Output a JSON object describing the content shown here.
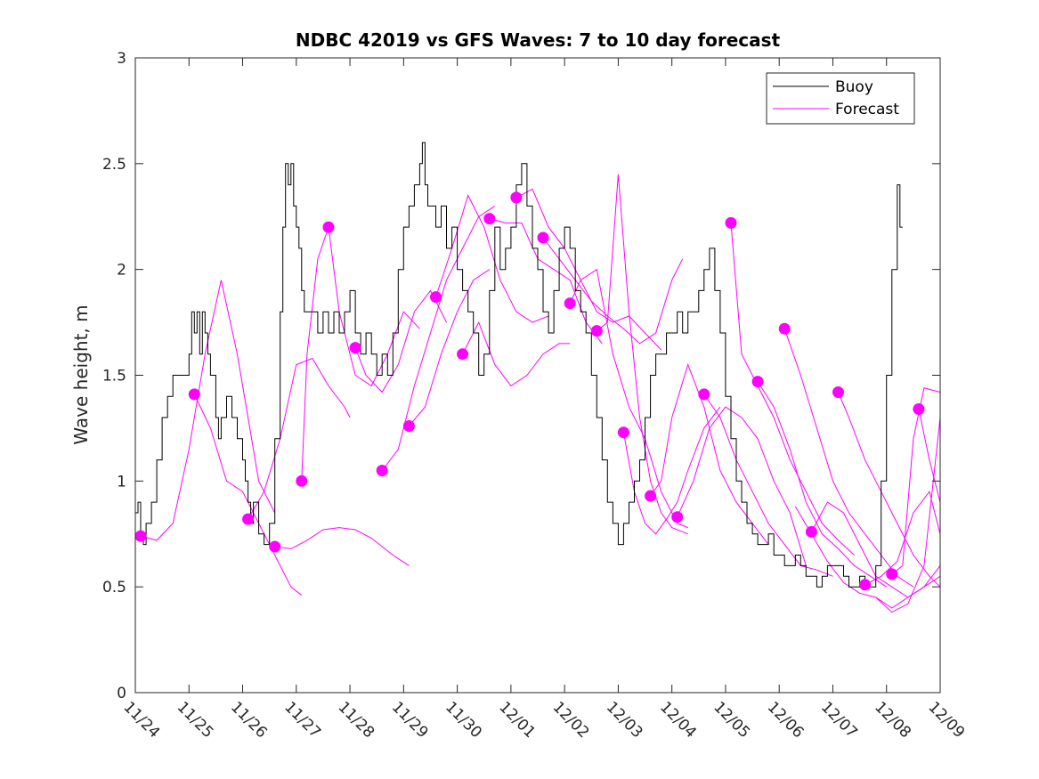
{
  "chart_data": {
    "type": "line",
    "title": "NDBC 42019 vs GFS Waves: 7 to 10 day forecast",
    "xlabel": "",
    "ylabel": "Wave height, m",
    "ylim": [
      0,
      3
    ],
    "yticks": [
      0,
      0.5,
      1,
      1.5,
      2,
      2.5,
      3
    ],
    "ytick_labels": [
      "0",
      "0.5",
      "1",
      "1.5",
      "2",
      "2.5",
      "3"
    ],
    "xlim_days": [
      0,
      15
    ],
    "xtick_labels": [
      "11/24",
      "11/25",
      "11/26",
      "11/27",
      "11/28",
      "11/29",
      "11/30",
      "12/01",
      "12/02",
      "12/03",
      "12/04",
      "12/05",
      "12/06",
      "12/07",
      "12/08",
      "12/09"
    ],
    "grid": false,
    "legend": {
      "placement": "top-right",
      "entries": [
        {
          "label": "Buoy",
          "color": "#000000"
        },
        {
          "label": "Forecast",
          "color": "#ff00ff"
        }
      ]
    },
    "colors": {
      "buoy": "#000000",
      "forecast": "#ff00ff",
      "axis": "#262626"
    },
    "series": [
      {
        "name": "Buoy",
        "x_days": [
          0,
          0.05,
          0.1,
          0.15,
          0.2,
          0.3,
          0.4,
          0.5,
          0.6,
          0.7,
          0.8,
          0.9,
          1.0,
          1.05,
          1.1,
          1.15,
          1.2,
          1.25,
          1.3,
          1.35,
          1.4,
          1.5,
          1.55,
          1.6,
          1.7,
          1.8,
          1.9,
          2.0,
          2.05,
          2.1,
          2.15,
          2.2,
          2.3,
          2.4,
          2.5,
          2.6,
          2.7,
          2.75,
          2.8,
          2.85,
          2.9,
          2.95,
          3.0,
          3.05,
          3.1,
          3.15,
          3.2,
          3.3,
          3.4,
          3.5,
          3.6,
          3.7,
          3.8,
          3.9,
          4.0,
          4.1,
          4.2,
          4.3,
          4.4,
          4.5,
          4.6,
          4.7,
          4.8,
          4.9,
          5.0,
          5.1,
          5.2,
          5.3,
          5.35,
          5.4,
          5.45,
          5.5,
          5.6,
          5.7,
          5.8,
          5.9,
          6.0,
          6.1,
          6.2,
          6.3,
          6.4,
          6.5,
          6.6,
          6.7,
          6.8,
          6.9,
          7.0,
          7.1,
          7.2,
          7.3,
          7.4,
          7.5,
          7.6,
          7.7,
          7.8,
          7.9,
          8.0,
          8.1,
          8.2,
          8.3,
          8.4,
          8.5,
          8.6,
          8.7,
          8.8,
          8.9,
          9.0,
          9.1,
          9.2,
          9.3,
          9.4,
          9.5,
          9.6,
          9.7,
          9.8,
          9.9,
          10.0,
          10.1,
          10.2,
          10.3,
          10.4,
          10.5,
          10.6,
          10.7,
          10.8,
          10.9,
          11.0,
          11.1,
          11.2,
          11.3,
          11.4,
          11.5,
          11.6,
          11.7,
          11.8,
          11.9,
          12.0,
          12.1,
          12.2,
          12.3,
          12.4,
          12.5,
          12.6,
          12.7,
          12.8,
          12.9,
          13.0,
          13.1,
          13.2,
          13.3,
          13.4,
          13.5,
          13.6,
          13.7,
          13.8,
          13.9,
          14.0,
          14.1,
          14.2,
          14.25,
          14.3,
          14.32
        ],
        "values": [
          0.85,
          0.9,
          0.75,
          0.7,
          0.8,
          0.9,
          1.1,
          1.3,
          1.4,
          1.5,
          1.5,
          1.5,
          1.6,
          1.8,
          1.7,
          1.8,
          1.6,
          1.8,
          1.7,
          1.6,
          1.5,
          1.3,
          1.2,
          1.3,
          1.4,
          1.3,
          1.2,
          1.1,
          1.0,
          0.9,
          0.8,
          0.9,
          0.75,
          0.7,
          0.8,
          1.2,
          1.8,
          2.2,
          2.5,
          2.4,
          2.5,
          2.3,
          2.2,
          2.1,
          1.9,
          1.8,
          1.8,
          1.8,
          1.7,
          1.8,
          1.7,
          1.8,
          1.7,
          1.8,
          1.9,
          1.7,
          1.6,
          1.7,
          1.6,
          1.5,
          1.6,
          1.5,
          1.7,
          2.0,
          2.2,
          2.3,
          2.4,
          2.5,
          2.6,
          2.4,
          2.3,
          2.3,
          2.2,
          2.3,
          2.1,
          2.2,
          2.0,
          1.9,
          1.8,
          1.7,
          1.5,
          1.6,
          1.9,
          2.2,
          2.0,
          2.1,
          2.2,
          2.4,
          2.5,
          2.3,
          2.1,
          2.0,
          1.8,
          1.7,
          1.9,
          2.1,
          2.2,
          2.1,
          1.9,
          1.8,
          1.7,
          1.5,
          1.3,
          1.1,
          0.9,
          0.8,
          0.7,
          0.8,
          0.9,
          1.0,
          1.1,
          1.3,
          1.5,
          1.6,
          1.6,
          1.7,
          1.7,
          1.8,
          1.7,
          1.8,
          1.8,
          1.9,
          2.0,
          2.1,
          1.9,
          1.7,
          1.4,
          1.2,
          1.0,
          0.9,
          0.8,
          0.75,
          0.7,
          0.7,
          0.75,
          0.65,
          0.65,
          0.6,
          0.6,
          0.65,
          0.6,
          0.55,
          0.55,
          0.5,
          0.55,
          0.6,
          0.6,
          0.6,
          0.55,
          0.5,
          0.5,
          0.55,
          0.5,
          0.5,
          0.6,
          1.0,
          1.5,
          2.0,
          2.4,
          2.2
        ]
      },
      {
        "name": "Forecast",
        "segments": [
          {
            "x_days": [
              0.1,
              0.4,
              0.7,
              1.0,
              1.3,
              1.6,
              1.9,
              2.1,
              2.3,
              2.6
            ],
            "values": [
              0.74,
              0.72,
              0.8,
              1.15,
              1.6,
              1.95,
              1.6,
              1.3,
              1.0,
              0.85
            ]
          },
          {
            "x_days": [
              1.1,
              1.4,
              1.7,
              2.0,
              2.3,
              2.6,
              2.9,
              3.1
            ],
            "values": [
              1.41,
              1.25,
              1.0,
              0.95,
              0.8,
              0.65,
              0.5,
              0.46
            ]
          },
          {
            "x_days": [
              2.1,
              2.4,
              2.7,
              3.0,
              3.3,
              3.6,
              3.9,
              4.0
            ],
            "values": [
              0.82,
              0.95,
              1.2,
              1.55,
              1.58,
              1.45,
              1.35,
              1.3
            ]
          },
          {
            "x_days": [
              2.6,
              2.9,
              3.2,
              3.5,
              3.8,
              4.1,
              4.4,
              4.8,
              5.1
            ],
            "values": [
              0.69,
              0.68,
              0.72,
              0.77,
              0.78,
              0.77,
              0.73,
              0.65,
              0.6
            ]
          },
          {
            "x_days": [
              3.1,
              3.2,
              3.4,
              3.6
            ],
            "values": [
              1.0,
              1.6,
              2.05,
              2.2
            ]
          },
          {
            "x_days": [
              3.6,
              3.8,
              4.1,
              4.4,
              4.7,
              5.0,
              5.3
            ],
            "values": [
              2.2,
              1.8,
              1.5,
              1.45,
              1.6,
              1.8,
              1.72
            ]
          },
          {
            "x_days": [
              4.1,
              4.3,
              4.6,
              4.9,
              5.2,
              5.5,
              5.8
            ],
            "values": [
              1.63,
              1.5,
              1.42,
              1.55,
              1.8,
              1.9,
              1.75
            ]
          },
          {
            "x_days": [
              4.6,
              4.9,
              5.2,
              5.5,
              5.8,
              6.1,
              6.4,
              6.7
            ],
            "values": [
              1.05,
              1.15,
              1.45,
              1.7,
              1.95,
              2.1,
              2.25,
              2.3
            ]
          },
          {
            "x_days": [
              5.1,
              5.4,
              5.7,
              6.0,
              6.3,
              6.6
            ],
            "values": [
              1.26,
              1.35,
              1.6,
              1.8,
              1.95,
              2.0
            ]
          },
          {
            "x_days": [
              5.6,
              5.9,
              6.2,
              6.5,
              6.8,
              7.1,
              7.4,
              7.7
            ],
            "values": [
              1.87,
              2.1,
              2.35,
              2.2,
              1.95,
              1.8,
              1.75,
              1.78
            ]
          },
          {
            "x_days": [
              6.1,
              6.4,
              6.7,
              7.0,
              7.3,
              7.6,
              7.9,
              8.1
            ],
            "values": [
              1.6,
              1.75,
              1.55,
              1.45,
              1.5,
              1.6,
              1.65,
              1.65
            ]
          },
          {
            "x_days": [
              6.6,
              6.9,
              7.2,
              7.5,
              7.8,
              8.1,
              8.4,
              8.7
            ],
            "values": [
              2.24,
              2.22,
              2.22,
              2.05,
              2.0,
              1.95,
              1.75,
              1.65
            ]
          },
          {
            "x_days": [
              7.1,
              7.4,
              7.7,
              8.0,
              8.3,
              8.6,
              8.9,
              9.2,
              9.5,
              9.8
            ],
            "values": [
              2.34,
              2.38,
              2.2,
              2.1,
              1.95,
              1.8,
              1.75,
              1.78,
              1.7,
              1.62
            ]
          },
          {
            "x_days": [
              7.6,
              7.9,
              8.2,
              8.5,
              8.8,
              9.1,
              9.4,
              9.7,
              10.0,
              10.2
            ],
            "values": [
              2.15,
              2.05,
              1.95,
              1.85,
              1.78,
              1.72,
              1.65,
              1.7,
              1.95,
              2.05
            ]
          },
          {
            "x_days": [
              8.1,
              8.3,
              8.6,
              8.9,
              9.2,
              9.5,
              9.8,
              10.1,
              10.3
            ],
            "values": [
              1.84,
              1.95,
              2.0,
              1.6,
              1.35,
              1.2,
              0.95,
              0.8,
              0.78
            ]
          },
          {
            "x_days": [
              8.6,
              8.8,
              9.0,
              9.2,
              9.4,
              9.6,
              9.8,
              10.0,
              10.3
            ],
            "values": [
              1.71,
              1.75,
              2.45,
              1.8,
              1.3,
              1.0,
              0.85,
              0.78,
              0.75
            ]
          },
          {
            "x_days": [
              9.1,
              9.3,
              9.5,
              9.7,
              9.9,
              10.1,
              10.3,
              10.6,
              10.9
            ],
            "values": [
              1.23,
              0.95,
              0.8,
              0.75,
              0.82,
              0.9,
              1.05,
              1.25,
              1.35
            ]
          },
          {
            "x_days": [
              9.6,
              9.8,
              10.0,
              10.3,
              10.6,
              10.9,
              11.2,
              11.5,
              11.8
            ],
            "values": [
              0.93,
              1.0,
              1.3,
              1.55,
              1.35,
              1.05,
              0.9,
              0.8,
              0.7
            ]
          },
          {
            "x_days": [
              10.1,
              10.4,
              10.7,
              11.0,
              11.3,
              11.6,
              11.9,
              12.2,
              12.5
            ],
            "values": [
              0.83,
              1.0,
              1.25,
              1.35,
              1.3,
              1.2,
              1.0,
              0.85,
              0.6
            ]
          },
          {
            "x_days": [
              10.6,
              10.9,
              11.2,
              11.5,
              11.8,
              12.1,
              12.4,
              12.7,
              13.0
            ],
            "values": [
              1.41,
              1.3,
              1.1,
              0.95,
              0.8,
              0.7,
              0.6,
              0.58,
              0.55
            ]
          },
          {
            "x_days": [
              11.1,
              11.3,
              11.6,
              11.9,
              12.2,
              12.5,
              12.8,
              13.1,
              13.4
            ],
            "values": [
              2.22,
              1.6,
              1.45,
              1.3,
              1.1,
              0.95,
              0.8,
              0.72,
              0.65
            ]
          },
          {
            "x_days": [
              11.6,
              11.9,
              12.2,
              12.5,
              12.8,
              13.1,
              13.4,
              13.7,
              14.0
            ],
            "values": [
              1.47,
              1.35,
              1.15,
              0.9,
              0.75,
              0.68,
              0.6,
              0.55,
              0.5
            ]
          },
          {
            "x_days": [
              12.1,
              12.4,
              12.7,
              13.0,
              13.3,
              13.6,
              13.9,
              14.2,
              14.5
            ],
            "values": [
              1.72,
              1.5,
              1.25,
              1.0,
              0.85,
              0.75,
              0.65,
              0.55,
              0.5
            ]
          },
          {
            "x_days": [
              12.6,
              12.9,
              13.2,
              13.5,
              13.8,
              14.1,
              14.4,
              14.7,
              15.0
            ],
            "values": [
              0.76,
              0.9,
              0.85,
              0.7,
              0.55,
              0.5,
              0.45,
              0.5,
              0.6
            ]
          },
          {
            "x_days": [
              13.1,
              13.3,
              13.6,
              13.9,
              14.2,
              14.5,
              14.8,
              15.0
            ],
            "values": [
              1.42,
              1.3,
              1.1,
              0.95,
              0.8,
              0.65,
              0.55,
              0.5
            ]
          },
          {
            "x_days": [
              13.6,
              13.9,
              14.2,
              14.5,
              14.8,
              15.0
            ],
            "values": [
              0.51,
              0.55,
              0.62,
              0.85,
              0.95,
              0.75
            ]
          },
          {
            "x_days": [
              14.1,
              14.3,
              14.5,
              14.7,
              15.0
            ],
            "values": [
              0.56,
              0.6,
              1.2,
              1.44,
              1.42
            ]
          },
          {
            "x_days": [
              14.6,
              14.8,
              15.0
            ],
            "values": [
              1.34,
              1.1,
              0.9
            ]
          },
          {
            "x_days": [
              13.8,
              14.1,
              14.4,
              14.7,
              15.0
            ],
            "values": [
              0.45,
              0.38,
              0.42,
              0.6,
              1.3
            ]
          },
          {
            "x_days": [
              12.3,
              12.6,
              12.9,
              13.2,
              13.5,
              13.8,
              14.1,
              14.4,
              14.7,
              15.0
            ],
            "values": [
              0.88,
              0.75,
              0.62,
              0.52,
              0.47,
              0.45,
              0.4,
              0.45,
              0.5,
              0.55
            ]
          }
        ],
        "markers": {
          "x_days": [
            0.1,
            1.1,
            2.1,
            2.6,
            3.1,
            3.6,
            4.1,
            4.6,
            5.1,
            5.6,
            6.1,
            6.6,
            7.1,
            7.6,
            8.1,
            8.6,
            9.1,
            9.6,
            10.1,
            10.6,
            11.1,
            11.6,
            12.1,
            12.6,
            13.1,
            13.6,
            14.1,
            14.6
          ],
          "values": [
            0.74,
            1.41,
            0.82,
            0.69,
            1.0,
            2.2,
            1.63,
            1.05,
            1.26,
            1.87,
            1.6,
            2.24,
            2.34,
            2.15,
            1.84,
            1.71,
            1.23,
            0.93,
            0.83,
            1.41,
            2.22,
            1.47,
            1.72,
            0.76,
            1.42,
            0.51,
            0.56,
            1.34
          ]
        }
      }
    ]
  }
}
